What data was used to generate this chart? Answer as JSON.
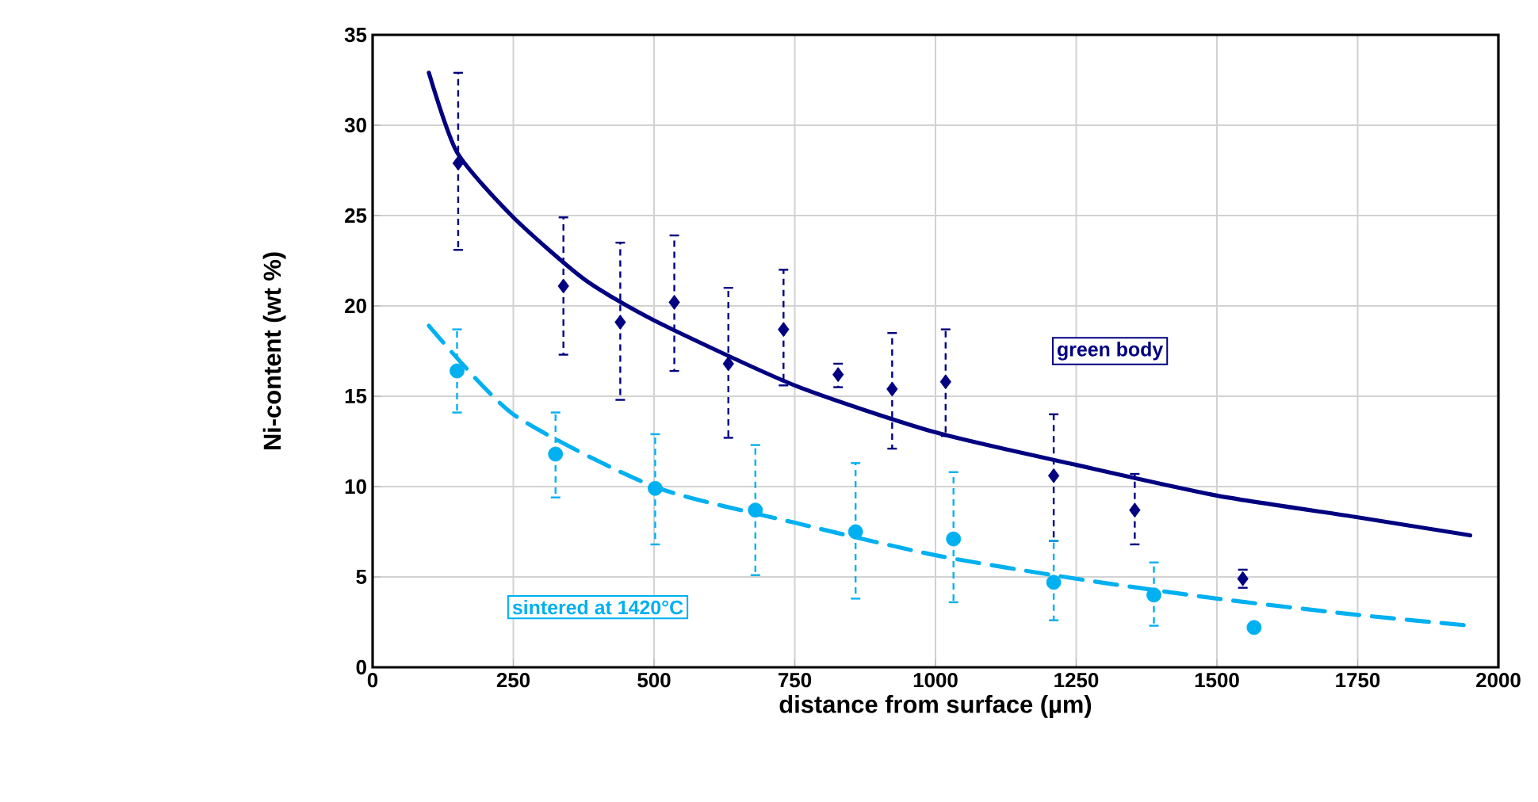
{
  "chart_data": {
    "type": "scatter",
    "xlabel": "distance from surface (µm)",
    "ylabel": "Ni-content (wt %)",
    "xlim": [
      0,
      2000
    ],
    "xticks": [
      0,
      250,
      500,
      750,
      1000,
      1250,
      1500,
      1750,
      2000
    ],
    "ylim": [
      0,
      35
    ],
    "yticks": [
      0,
      5,
      10,
      15,
      20,
      25,
      30,
      35
    ],
    "grid": true,
    "series": [
      {
        "name": "green body",
        "color": "#000080",
        "marker": "diamond",
        "x": [
          152,
          339,
          440,
          536,
          632,
          730,
          827,
          923,
          1018,
          1210,
          1354,
          1546
        ],
        "values": [
          27.9,
          21.1,
          19.1,
          20.2,
          16.8,
          18.7,
          16.2,
          15.4,
          15.8,
          10.6,
          8.7,
          4.9
        ],
        "errors": [
          [
            23.1,
            32.9
          ],
          [
            17.3,
            24.9
          ],
          [
            14.8,
            23.5
          ],
          [
            16.4,
            23.9
          ],
          [
            12.7,
            21.0
          ],
          [
            15.6,
            22.0
          ],
          [
            15.5,
            16.8
          ],
          [
            12.1,
            18.5
          ],
          [
            12.8,
            18.7
          ],
          [
            7.0,
            14.0
          ],
          [
            6.8,
            10.7
          ],
          [
            4.4,
            5.4
          ]
        ]
      },
      {
        "type": "line",
        "color": "#000080",
        "marker": "none",
        "line_style": "solid",
        "x": [
          100,
          150,
          250,
          375,
          500,
          750,
          1000,
          1250,
          1500,
          1750,
          1950
        ],
        "values": [
          32.9,
          28.5,
          24.9,
          21.5,
          19.2,
          15.6,
          13.0,
          11.2,
          9.5,
          8.3,
          7.3
        ]
      },
      {
        "name": "sintered at 1420°C",
        "color": "#00b0f0",
        "marker": "circle",
        "x": [
          150,
          325,
          502,
          680,
          858,
          1032,
          1210,
          1388,
          1566
        ],
        "values": [
          16.4,
          11.8,
          9.9,
          8.7,
          7.5,
          7.1,
          4.7,
          4.0,
          2.2
        ],
        "errors": [
          [
            14.1,
            18.7
          ],
          [
            9.4,
            14.1
          ],
          [
            6.8,
            12.9
          ],
          [
            5.1,
            12.3
          ],
          [
            3.8,
            11.3
          ],
          [
            3.6,
            10.8
          ],
          [
            2.6,
            7.0
          ],
          [
            2.3,
            5.8
          ],
          null
        ]
      },
      {
        "type": "line",
        "color": "#00b0f0",
        "marker": "none",
        "line_style": "dashed",
        "x": [
          100,
          250,
          500,
          750,
          1000,
          1250,
          1500,
          1750,
          1950
        ],
        "values": [
          18.9,
          14.0,
          10.0,
          8.0,
          6.2,
          4.9,
          3.8,
          2.9,
          2.3
        ]
      }
    ]
  }
}
